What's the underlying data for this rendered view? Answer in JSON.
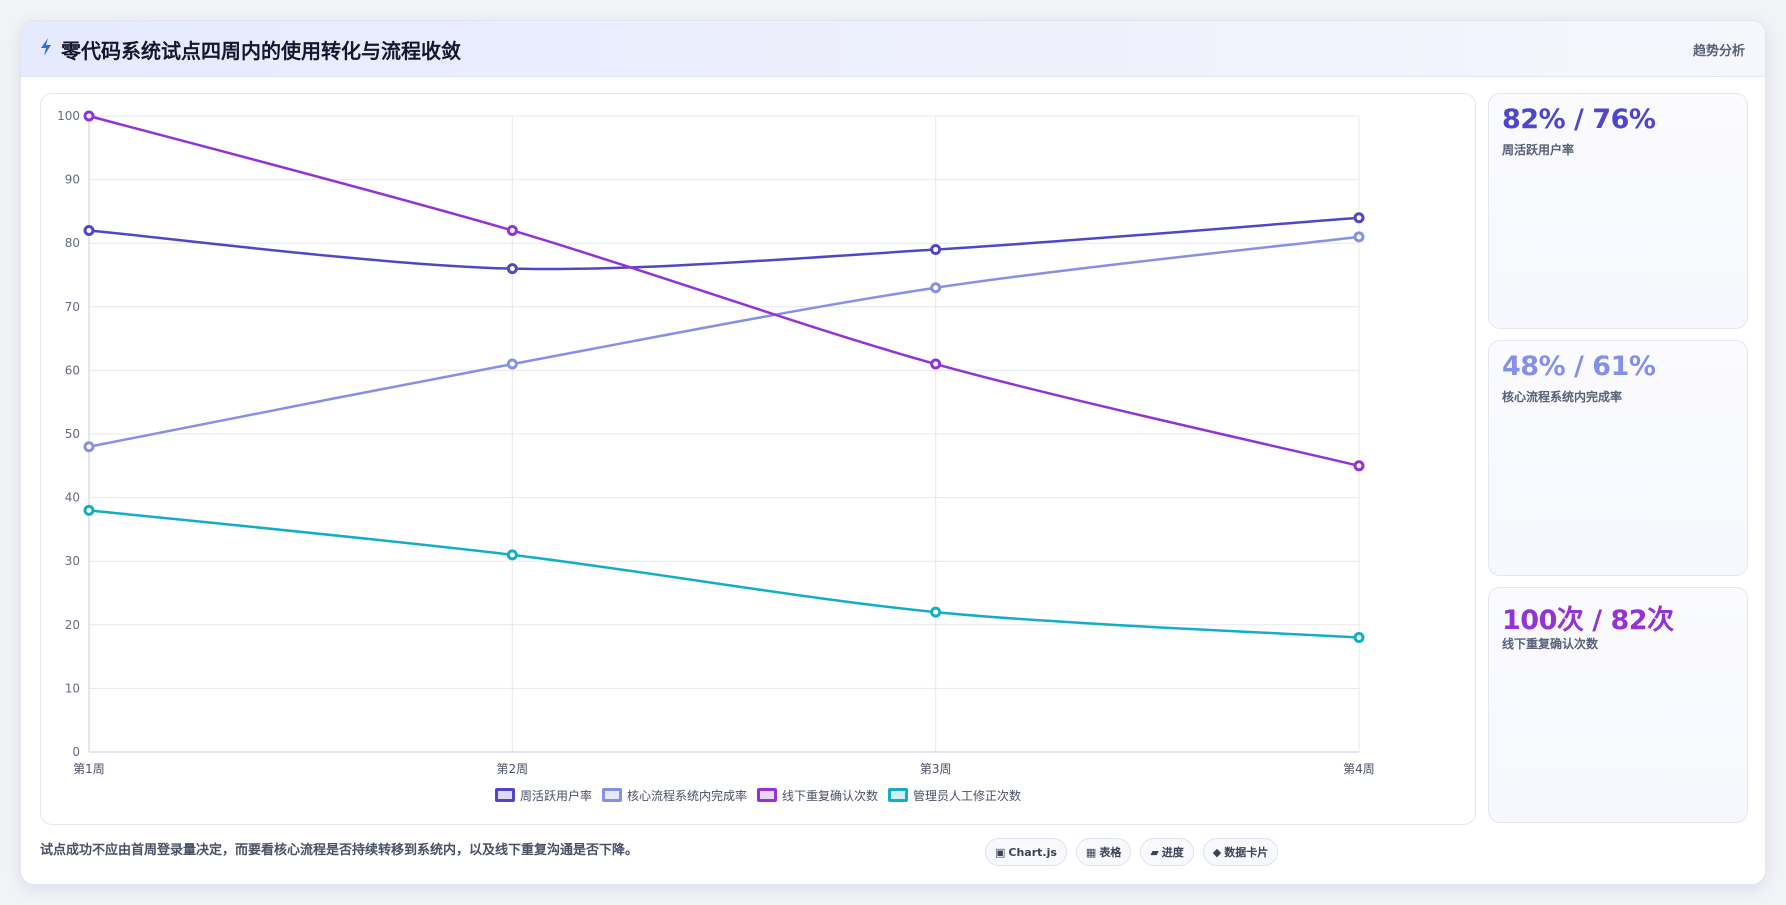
{
  "header": {
    "icon": "lightning-icon",
    "title": "零代码系统试点四周内的使用转化与流程收敛",
    "tag": "趋势分析"
  },
  "colors": {
    "active": "#4f46c9",
    "completion": "#8790e8",
    "offline": "#9333d6",
    "manual": "#12aec8"
  },
  "chart_data": {
    "type": "line",
    "categories": [
      "第1周",
      "第2周",
      "第3周",
      "第4周"
    ],
    "series": [
      {
        "name": "周活跃用户率",
        "color": "#4f46c9",
        "values": [
          82,
          76,
          79,
          84
        ]
      },
      {
        "name": "核心流程系统内完成率",
        "color": "#8790e8",
        "values": [
          48,
          61,
          73,
          81
        ]
      },
      {
        "name": "线下重复确认次数",
        "color": "#9333d6",
        "values": [
          100,
          82,
          61,
          45
        ]
      },
      {
        "name": "管理员人工修正次数",
        "color": "#12aec8",
        "values": [
          38,
          31,
          22,
          18
        ]
      }
    ],
    "ylim": [
      0,
      100
    ],
    "yticks": [
      0,
      10,
      20,
      30,
      40,
      50,
      60,
      70,
      80,
      90,
      100
    ],
    "grid": true,
    "legend": "bottom"
  },
  "kpis": [
    {
      "value": "82% / 76%",
      "label": "周活跃用户率",
      "color": "#4f46c9"
    },
    {
      "value": "48% / 61%",
      "label": "核心流程系统内完成率",
      "color": "#8790e8"
    },
    {
      "value": "100次 / 82次",
      "label": "线下重复确认次数",
      "color": "#9333d6"
    }
  ],
  "footer": {
    "note": "试点成功不应由首周登录量决定，而要看核心流程是否持续转移到系统内，以及线下重复沟通是否下降。",
    "chips": [
      {
        "icon": "▣",
        "label": "Chart.js"
      },
      {
        "icon": "▦",
        "label": "表格"
      },
      {
        "icon": "▰",
        "label": "进度"
      },
      {
        "icon": "◆",
        "label": "数据卡片"
      }
    ]
  }
}
